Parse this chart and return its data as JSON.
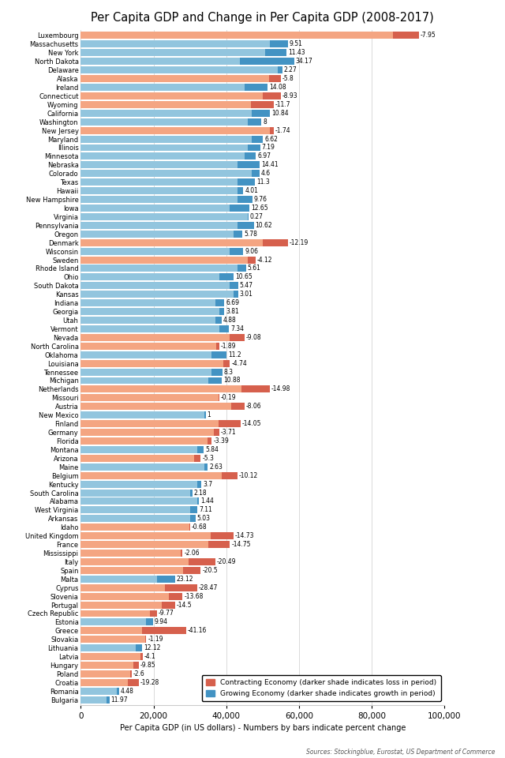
{
  "title": "Per Capita GDP and Change in Per Capita GDP (2008-2017)",
  "xlabel": "Per Capita GDP (in US dollars) - Numbers by bars indicate percent change",
  "source": "Sources: Stockingblue, Eurostat, US Department of Commerce",
  "xlim": [
    0,
    100000
  ],
  "xticks": [
    0,
    20000,
    40000,
    60000,
    80000,
    100000
  ],
  "xticklabels": [
    "0",
    "20,000",
    "40,000",
    "60,000",
    "80,000",
    "100,000"
  ],
  "legend_contracting": "Contracting Economy (darker shade indicates loss in period)",
  "legend_growing": "Growing Economy (darker shade indicates growth in period)",
  "colors": {
    "contracting_light": "#F4A582",
    "contracting_dark": "#D6604D",
    "growing_light": "#92C5DE",
    "growing_dark": "#4393C3"
  },
  "entries": [
    {
      "name": "Luxembourg",
      "gdp2008": 93000,
      "gdp2017": 85800,
      "pct": -7.95,
      "growing": false
    },
    {
      "name": "Massachusetts",
      "gdp2008": 52000,
      "gdp2017": 56950,
      "pct": 9.51,
      "growing": true
    },
    {
      "name": "New York",
      "gdp2008": 50800,
      "gdp2017": 56610,
      "pct": 11.43,
      "growing": true
    },
    {
      "name": "North Dakota",
      "gdp2008": 43700,
      "gdp2017": 58630,
      "pct": 34.17,
      "growing": true
    },
    {
      "name": "Delaware",
      "gdp2008": 54200,
      "gdp2017": 55430,
      "pct": 2.27,
      "growing": true
    },
    {
      "name": "Alaska",
      "gdp2008": 55000,
      "gdp2017": 51800,
      "pct": -5.8,
      "growing": false
    },
    {
      "name": "Ireland",
      "gdp2008": 45000,
      "gdp2017": 51330,
      "pct": 14.08,
      "growing": true
    },
    {
      "name": "Connecticut",
      "gdp2008": 55000,
      "gdp2017": 50083,
      "pct": -8.93,
      "growing": false
    },
    {
      "name": "Wyoming",
      "gdp2008": 53000,
      "gdp2017": 46800,
      "pct": -11.7,
      "growing": false
    },
    {
      "name": "California",
      "gdp2008": 47000,
      "gdp2017": 52090,
      "pct": 10.84,
      "growing": true
    },
    {
      "name": "Washington",
      "gdp2008": 46000,
      "gdp2017": 49680,
      "pct": 8,
      "growing": true
    },
    {
      "name": "New Jersey",
      "gdp2008": 53000,
      "gdp2017": 52077,
      "pct": -1.74,
      "growing": false
    },
    {
      "name": "Maryland",
      "gdp2008": 47000,
      "gdp2017": 50110,
      "pct": 6.62,
      "growing": true
    },
    {
      "name": "Illinois",
      "gdp2008": 46000,
      "gdp2017": 49307,
      "pct": 7.19,
      "growing": true
    },
    {
      "name": "Minnesota",
      "gdp2008": 45000,
      "gdp2017": 48127,
      "pct": 6.97,
      "growing": true
    },
    {
      "name": "Nebraska",
      "gdp2008": 43000,
      "gdp2017": 49193,
      "pct": 14.41,
      "growing": true
    },
    {
      "name": "Colorado",
      "gdp2008": 47000,
      "gdp2017": 49166,
      "pct": 4.6,
      "growing": true
    },
    {
      "name": "Texas",
      "gdp2008": 43000,
      "gdp2017": 47859,
      "pct": 11.3,
      "growing": true
    },
    {
      "name": "Hawaii",
      "gdp2008": 43000,
      "gdp2017": 44724,
      "pct": 4.01,
      "growing": true
    },
    {
      "name": "New Hampshire",
      "gdp2008": 43000,
      "gdp2017": 47198,
      "pct": 9.76,
      "growing": true
    },
    {
      "name": "Iowa",
      "gdp2008": 41000,
      "gdp2017": 46383,
      "pct": 12.65,
      "growing": true
    },
    {
      "name": "Virginia",
      "gdp2008": 46000,
      "gdp2017": 46124,
      "pct": 0.27,
      "growing": true
    },
    {
      "name": "Pennsylvania",
      "gdp2008": 43000,
      "gdp2017": 47568,
      "pct": 10.62,
      "growing": true
    },
    {
      "name": "Oregon",
      "gdp2008": 42000,
      "gdp2017": 44430,
      "pct": 5.78,
      "growing": true
    },
    {
      "name": "Denmark",
      "gdp2008": 57000,
      "gdp2017": 50054,
      "pct": -12.19,
      "growing": false
    },
    {
      "name": "Wisconsin",
      "gdp2008": 41000,
      "gdp2017": 44725,
      "pct": 9.06,
      "growing": true
    },
    {
      "name": "Sweden",
      "gdp2008": 48000,
      "gdp2017": 46022,
      "pct": -4.12,
      "growing": false
    },
    {
      "name": "Rhode Island",
      "gdp2008": 43000,
      "gdp2017": 45413,
      "pct": 5.61,
      "growing": true
    },
    {
      "name": "Ohio",
      "gdp2008": 38000,
      "gdp2017": 42037,
      "pct": 10.65,
      "growing": true
    },
    {
      "name": "South Dakota",
      "gdp2008": 41000,
      "gdp2017": 43244,
      "pct": 5.47,
      "growing": true
    },
    {
      "name": "Kansas",
      "gdp2008": 42000,
      "gdp2017": 43264,
      "pct": 3.01,
      "growing": true
    },
    {
      "name": "Indiana",
      "gdp2008": 37000,
      "gdp2017": 39474,
      "pct": 6.69,
      "growing": true
    },
    {
      "name": "Georgia",
      "gdp2008": 38000,
      "gdp2017": 39451,
      "pct": 3.81,
      "growing": true
    },
    {
      "name": "Utah",
      "gdp2008": 37000,
      "gdp2017": 38808,
      "pct": 4.88,
      "growing": true
    },
    {
      "name": "Vermont",
      "gdp2008": 38000,
      "gdp2017": 40790,
      "pct": 7.34,
      "growing": true
    },
    {
      "name": "Nevada",
      "gdp2008": 45000,
      "gdp2017": 40915,
      "pct": -9.08,
      "growing": false
    },
    {
      "name": "North Carolina",
      "gdp2008": 38000,
      "gdp2017": 37281,
      "pct": -1.89,
      "growing": false
    },
    {
      "name": "Oklahoma",
      "gdp2008": 36000,
      "gdp2017": 40032,
      "pct": 11.2,
      "growing": true
    },
    {
      "name": "Louisiana",
      "gdp2008": 41000,
      "gdp2017": 39121,
      "pct": -4.74,
      "growing": false
    },
    {
      "name": "Tennessee",
      "gdp2008": 36000,
      "gdp2017": 38988,
      "pct": 8.3,
      "growing": true
    },
    {
      "name": "Michigan",
      "gdp2008": 35000,
      "gdp2017": 38804,
      "pct": 10.88,
      "growing": true
    },
    {
      "name": "Netherlands",
      "gdp2008": 52000,
      "gdp2017": 44219,
      "pct": -14.98,
      "growing": false
    },
    {
      "name": "Missouri",
      "gdp2008": 38000,
      "gdp2017": 37924,
      "pct": -0.19,
      "growing": false
    },
    {
      "name": "Austria",
      "gdp2008": 45000,
      "gdp2017": 41375,
      "pct": -8.06,
      "growing": false
    },
    {
      "name": "New Mexico",
      "gdp2008": 34000,
      "gdp2017": 34340,
      "pct": 1,
      "growing": true
    },
    {
      "name": "Finland",
      "gdp2008": 44000,
      "gdp2017": 37812,
      "pct": -14.05,
      "growing": false
    },
    {
      "name": "Germany",
      "gdp2008": 38000,
      "gdp2017": 36589,
      "pct": -3.71,
      "growing": false
    },
    {
      "name": "Florida",
      "gdp2008": 36000,
      "gdp2017": 34782,
      "pct": -3.39,
      "growing": false
    },
    {
      "name": "Montana",
      "gdp2008": 32000,
      "gdp2017": 33869,
      "pct": 5.84,
      "growing": true
    },
    {
      "name": "Arizona",
      "gdp2008": 33000,
      "gdp2017": 31259,
      "pct": -5.3,
      "growing": false
    },
    {
      "name": "Maine",
      "gdp2008": 34000,
      "gdp2017": 34897,
      "pct": 2.63,
      "growing": true
    },
    {
      "name": "Belgium",
      "gdp2008": 43000,
      "gdp2017": 38651,
      "pct": -10.12,
      "growing": false
    },
    {
      "name": "Kentucky",
      "gdp2008": 32000,
      "gdp2017": 33184,
      "pct": 3.7,
      "growing": true
    },
    {
      "name": "South Carolina",
      "gdp2008": 30000,
      "gdp2017": 30654,
      "pct": 2.18,
      "growing": true
    },
    {
      "name": "Alabama",
      "gdp2008": 32000,
      "gdp2017": 32464,
      "pct": 1.44,
      "growing": true
    },
    {
      "name": "West Virginia",
      "gdp2008": 30000,
      "gdp2017": 32130,
      "pct": 7.11,
      "growing": true
    },
    {
      "name": "Arkansas",
      "gdp2008": 30000,
      "gdp2017": 31509,
      "pct": 5.03,
      "growing": true
    },
    {
      "name": "Idaho",
      "gdp2008": 30000,
      "gdp2017": 29796,
      "pct": -0.68,
      "growing": false
    },
    {
      "name": "United Kingdom",
      "gdp2008": 42000,
      "gdp2017": 35808,
      "pct": -14.73,
      "growing": false
    },
    {
      "name": "France",
      "gdp2008": 41000,
      "gdp2017": 34987,
      "pct": -14.75,
      "growing": false
    },
    {
      "name": "Mississippi",
      "gdp2008": 28000,
      "gdp2017": 27423,
      "pct": -2.06,
      "growing": false
    },
    {
      "name": "Italy",
      "gdp2008": 37000,
      "gdp2017": 29619,
      "pct": -20.49,
      "growing": false
    },
    {
      "name": "Spain",
      "gdp2008": 33000,
      "gdp2017": 28222,
      "pct": -20.5,
      "growing": false
    },
    {
      "name": "Malta",
      "gdp2008": 21000,
      "gdp2017": 25860,
      "pct": 23.12,
      "growing": true
    },
    {
      "name": "Cyprus",
      "gdp2008": 32000,
      "gdp2017": 23165,
      "pct": -28.47,
      "growing": false
    },
    {
      "name": "Slovenia",
      "gdp2008": 28000,
      "gdp2017": 24189,
      "pct": -13.68,
      "growing": false
    },
    {
      "name": "Portugal",
      "gdp2008": 26000,
      "gdp2017": 22209,
      "pct": -14.5,
      "growing": false
    },
    {
      "name": "Czech Republic",
      "gdp2008": 21000,
      "gdp2017": 19044,
      "pct": -9.77,
      "growing": false
    },
    {
      "name": "Estonia",
      "gdp2008": 18000,
      "gdp2017": 19795,
      "pct": 9.94,
      "growing": true
    },
    {
      "name": "Greece",
      "gdp2008": 29000,
      "gdp2017": 16857,
      "pct": -41.16,
      "growing": false
    },
    {
      "name": "Slovakia",
      "gdp2008": 18000,
      "gdp2017": 17786,
      "pct": -1.19,
      "growing": false
    },
    {
      "name": "Lithuania",
      "gdp2008": 15000,
      "gdp2017": 16818,
      "pct": 12.12,
      "growing": true
    },
    {
      "name": "Latvia",
      "gdp2008": 17000,
      "gdp2017": 16303,
      "pct": -4.1,
      "growing": false
    },
    {
      "name": "Hungary",
      "gdp2008": 16000,
      "gdp2017": 14426,
      "pct": -9.85,
      "growing": false
    },
    {
      "name": "Poland",
      "gdp2008": 14000,
      "gdp2017": 13636,
      "pct": -2.6,
      "growing": false
    },
    {
      "name": "Croatia",
      "gdp2008": 16000,
      "gdp2017": 12914,
      "pct": -19.28,
      "growing": false
    },
    {
      "name": "Romania",
      "gdp2008": 10000,
      "gdp2017": 10448,
      "pct": 4.48,
      "growing": true
    },
    {
      "name": "Bulgaria",
      "gdp2008": 7000,
      "gdp2017": 7838,
      "pct": 11.97,
      "growing": true
    }
  ]
}
